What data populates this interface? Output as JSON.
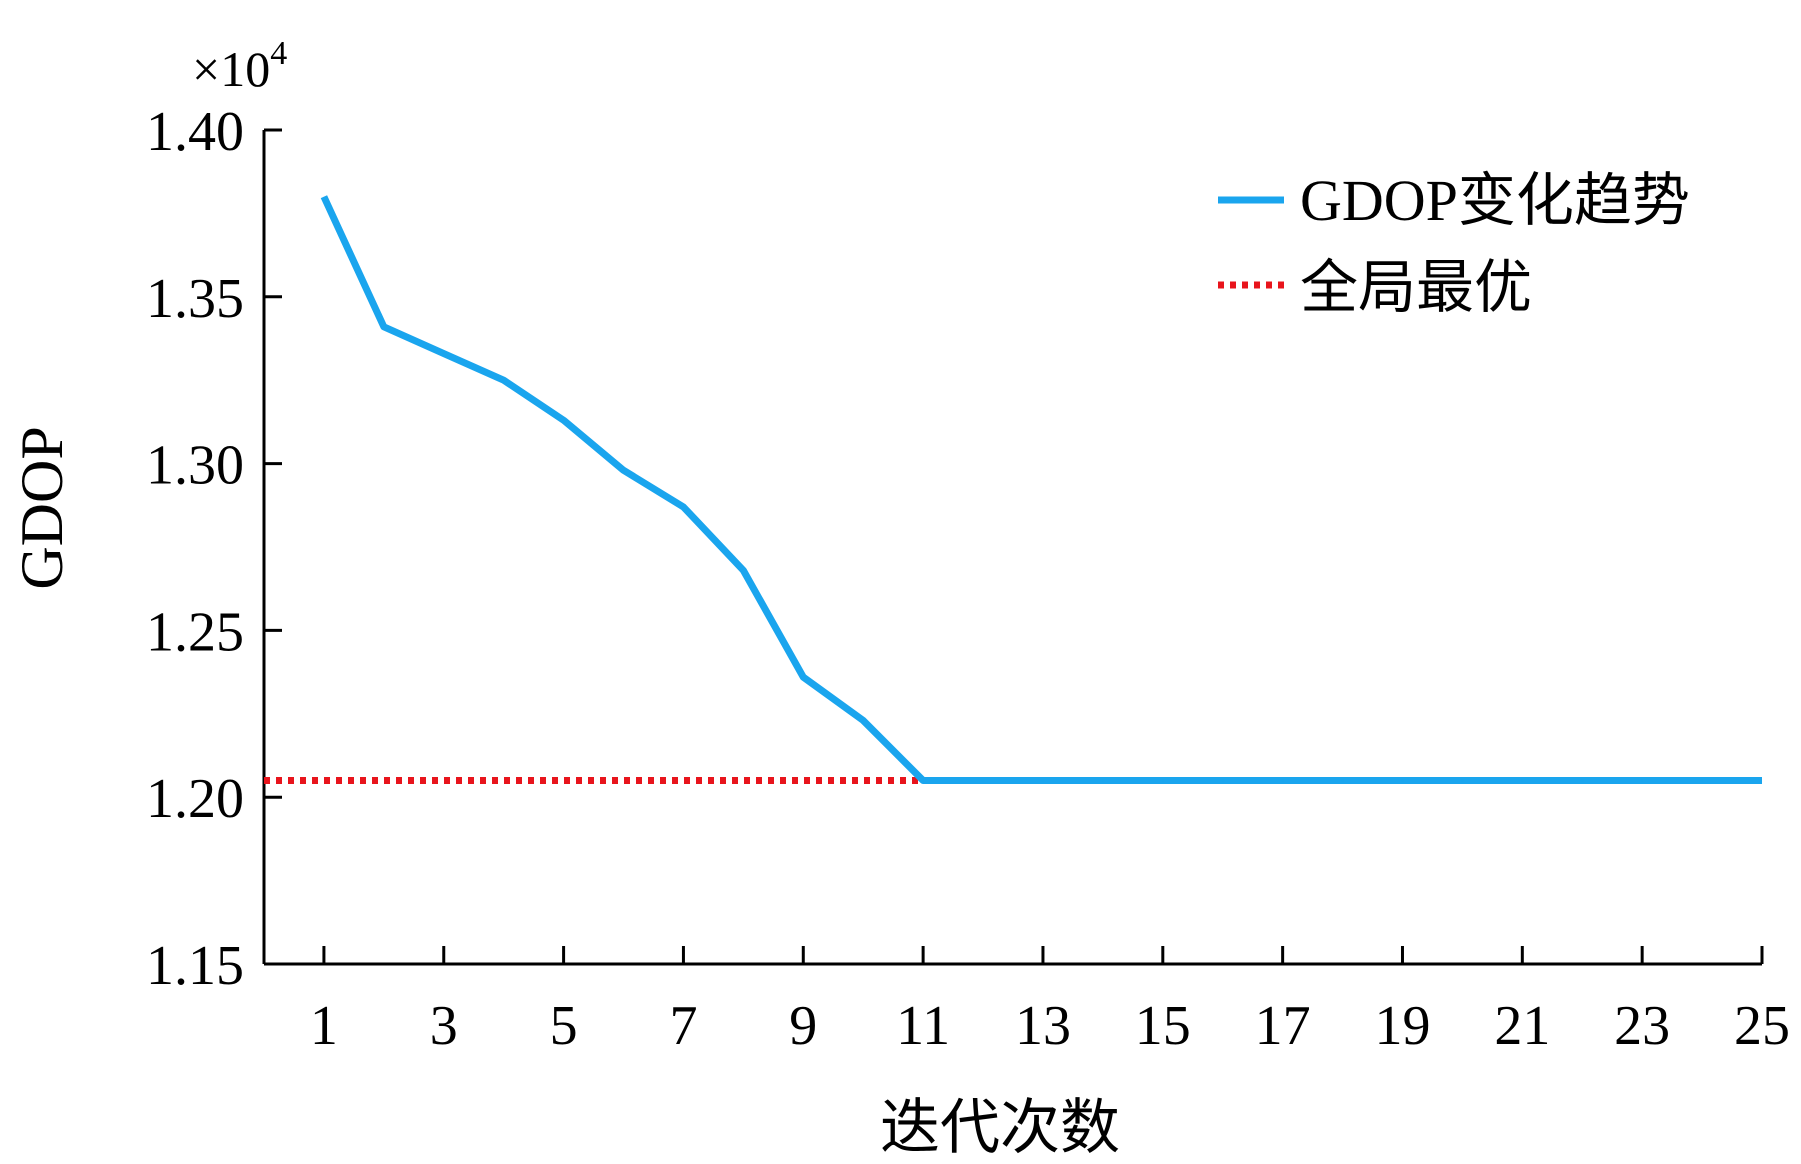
{
  "chart_data": {
    "type": "line",
    "xlabel": "迭代次数",
    "ylabel": "GDOP",
    "y_multiplier": {
      "base": "×10",
      "exponent": "4"
    },
    "xlim": [
      0,
      25
    ],
    "ylim": [
      1.15,
      1.4
    ],
    "x_ticks": [
      1,
      3,
      5,
      7,
      9,
      11,
      13,
      15,
      17,
      19,
      21,
      23,
      25
    ],
    "x_tick_labels": [
      "1",
      "3",
      "5",
      "7",
      "9",
      "11",
      "13",
      "15",
      "17",
      "19",
      "21",
      "23",
      "25"
    ],
    "y_ticks": [
      1.15,
      1.2,
      1.25,
      1.3,
      1.35,
      1.4
    ],
    "y_tick_labels": [
      "1.15",
      "1.20",
      "1.25",
      "1.30",
      "1.35",
      "1.40"
    ],
    "series": [
      {
        "name": "GDOP变化趋势",
        "style": "solid",
        "color": "#1aa5ee",
        "x": [
          1,
          2,
          3,
          4,
          5,
          6,
          7,
          8,
          9,
          10,
          11,
          12,
          13,
          14,
          15,
          16,
          17,
          18,
          19,
          20,
          21,
          22,
          23,
          24,
          25
        ],
        "y": [
          1.38,
          1.341,
          1.333,
          1.325,
          1.313,
          1.298,
          1.287,
          1.268,
          1.236,
          1.223,
          1.205,
          1.205,
          1.205,
          1.205,
          1.205,
          1.205,
          1.205,
          1.205,
          1.205,
          1.205,
          1.205,
          1.205,
          1.205,
          1.205,
          1.205
        ]
      },
      {
        "name": "全局最优",
        "style": "dotted",
        "color": "#e8141c",
        "x": [
          0,
          11
        ],
        "y": [
          1.205,
          1.205
        ]
      }
    ],
    "legend": {
      "placement": "top-right"
    },
    "grid": false
  }
}
